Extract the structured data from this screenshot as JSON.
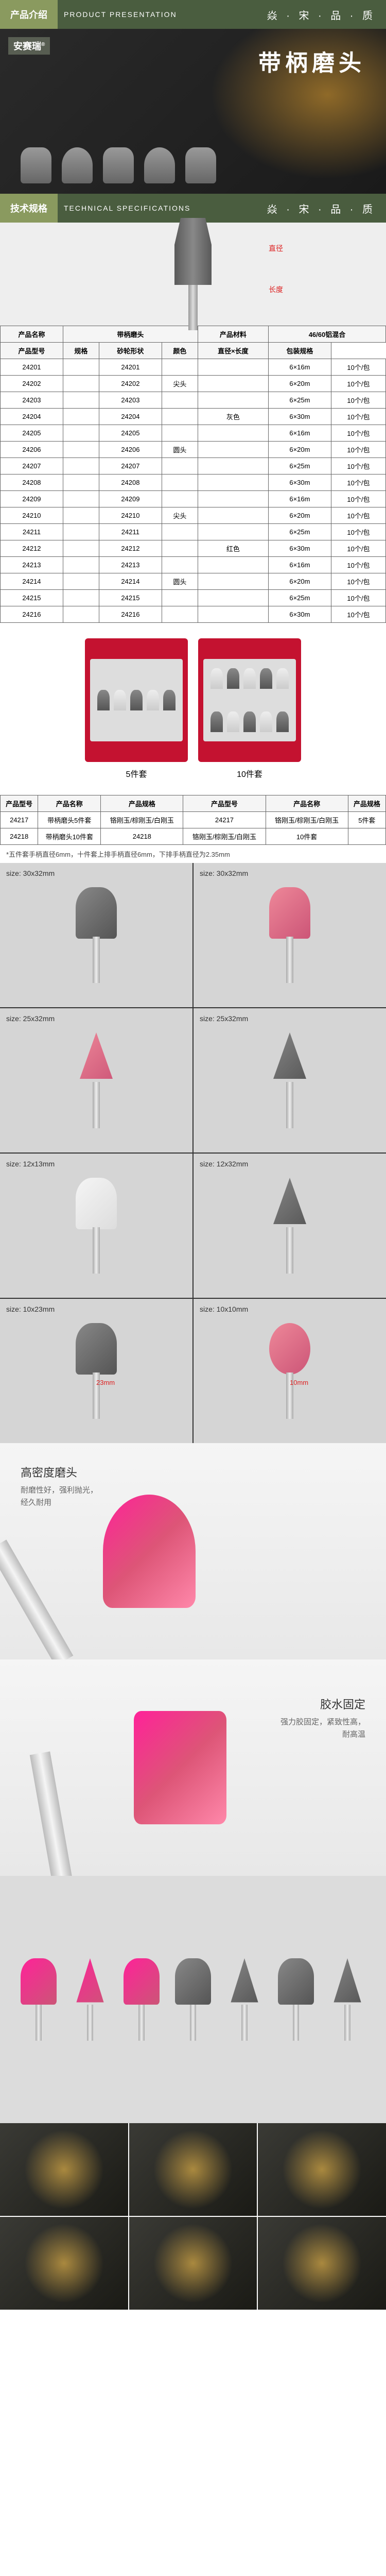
{
  "brand": {
    "name": "安赛瑞",
    "tm": "®"
  },
  "sections": {
    "intro": {
      "cn": "产品介绍",
      "en": "PRODUCT PRESENTATION",
      "dots": "焱 · 宋 · 品 · 质"
    },
    "spec": {
      "cn": "技术规格",
      "en": "TECHNICAL SPECIFICATIONS",
      "dots": "焱 · 宋 · 品 · 质"
    }
  },
  "hero": {
    "title": "带柄磨头"
  },
  "diagram": {
    "dia_label": "直径",
    "len_label": "长度"
  },
  "table1": {
    "headers": [
      "产品型号",
      "规格",
      "砂轮形状",
      "颜色",
      "产品材料",
      "直径×长度",
      "包装规格"
    ],
    "product_name_label": "产品名称",
    "product_name": "带柄磨头",
    "material": "46/60铝混合",
    "rows": [
      {
        "id": "24201",
        "shape": "",
        "color": "",
        "size": "6×16m",
        "pack": "10个/包"
      },
      {
        "id": "24202",
        "shape": "尖头",
        "color": "",
        "size": "6×20m",
        "pack": "10个/包"
      },
      {
        "id": "24203",
        "shape": "",
        "color": "",
        "size": "6×25m",
        "pack": "10个/包"
      },
      {
        "id": "24204",
        "shape": "",
        "color": "灰色",
        "size": "6×30m",
        "pack": "10个/包"
      },
      {
        "id": "24205",
        "shape": "",
        "color": "",
        "size": "6×16m",
        "pack": "10个/包"
      },
      {
        "id": "24206",
        "shape": "圆头",
        "color": "",
        "size": "6×20m",
        "pack": "10个/包"
      },
      {
        "id": "24207",
        "shape": "",
        "color": "",
        "size": "6×25m",
        "pack": "10个/包"
      },
      {
        "id": "24208",
        "shape": "",
        "color": "",
        "size": "6×30m",
        "pack": "10个/包"
      },
      {
        "id": "24209",
        "shape": "",
        "color": "",
        "size": "6×16m",
        "pack": "10个/包"
      },
      {
        "id": "24210",
        "shape": "尖头",
        "color": "",
        "size": "6×20m",
        "pack": "10个/包"
      },
      {
        "id": "24211",
        "shape": "",
        "color": "",
        "size": "6×25m",
        "pack": "10个/包"
      },
      {
        "id": "24212",
        "shape": "",
        "color": "红色",
        "size": "6×30m",
        "pack": "10个/包"
      },
      {
        "id": "24213",
        "shape": "",
        "color": "",
        "size": "6×16m",
        "pack": "10个/包"
      },
      {
        "id": "24214",
        "shape": "圆头",
        "color": "",
        "size": "6×20m",
        "pack": "10个/包"
      },
      {
        "id": "24215",
        "shape": "",
        "color": "",
        "size": "6×25m",
        "pack": "10个/包"
      },
      {
        "id": "24216",
        "shape": "",
        "color": "",
        "size": "6×30m",
        "pack": "10个/包"
      }
    ]
  },
  "kits": {
    "k5": "5件套",
    "k10": "10件套"
  },
  "table2": {
    "headers": [
      "产品型号",
      "产品名称",
      "产品规格",
      "产品型号",
      "产品名称",
      "产品规格"
    ],
    "rows": [
      [
        "24217",
        "带柄磨头5件套",
        "铬刚玉/棕刚玉/白刚玉",
        "24217",
        "铬刚玉/棕刚玉/白刚玉",
        "5件套"
      ],
      [
        "24218",
        "带柄磨头10件套",
        "24218",
        "铬刚玉/棕刚玉/白刚玉",
        "10件套",
        ""
      ]
    ],
    "note": "*五件套手柄直径6mm，十件套上排手柄直径6mm，下排手柄直径为2.35mm"
  },
  "photos": [
    {
      "size": "size: 30x32mm",
      "color": "grey",
      "shape": ""
    },
    {
      "size": "size: 30x32mm",
      "color": "pink",
      "shape": ""
    },
    {
      "size": "size: 25x32mm",
      "color": "pink",
      "shape": "cone"
    },
    {
      "size": "size: 25x32mm",
      "color": "grey",
      "shape": "cone"
    },
    {
      "size": "size: 12x13mm",
      "color": "white",
      "shape": ""
    },
    {
      "size": "size: 12x32mm",
      "color": "grey",
      "shape": "cone"
    },
    {
      "size": "size: 10x23mm",
      "color": "grey",
      "shape": "",
      "dim": "23mm"
    },
    {
      "size": "size: 10x10mm",
      "color": "pink",
      "shape": "ball",
      "dim": "10mm"
    }
  ],
  "feature1": {
    "title": "高密度磨头",
    "line1": "耐磨性好，强利抛光，",
    "line2": "经久耐用"
  },
  "feature2": {
    "title": "胶水固定",
    "line1": "强力胶固定，紧致性高，",
    "line2": "耐高温"
  },
  "colors": {
    "header_bg": "#4a5d3f",
    "tab_bg": "#8a9a5f",
    "kit_bg": "#c41230",
    "accent_red": "#d22222"
  }
}
